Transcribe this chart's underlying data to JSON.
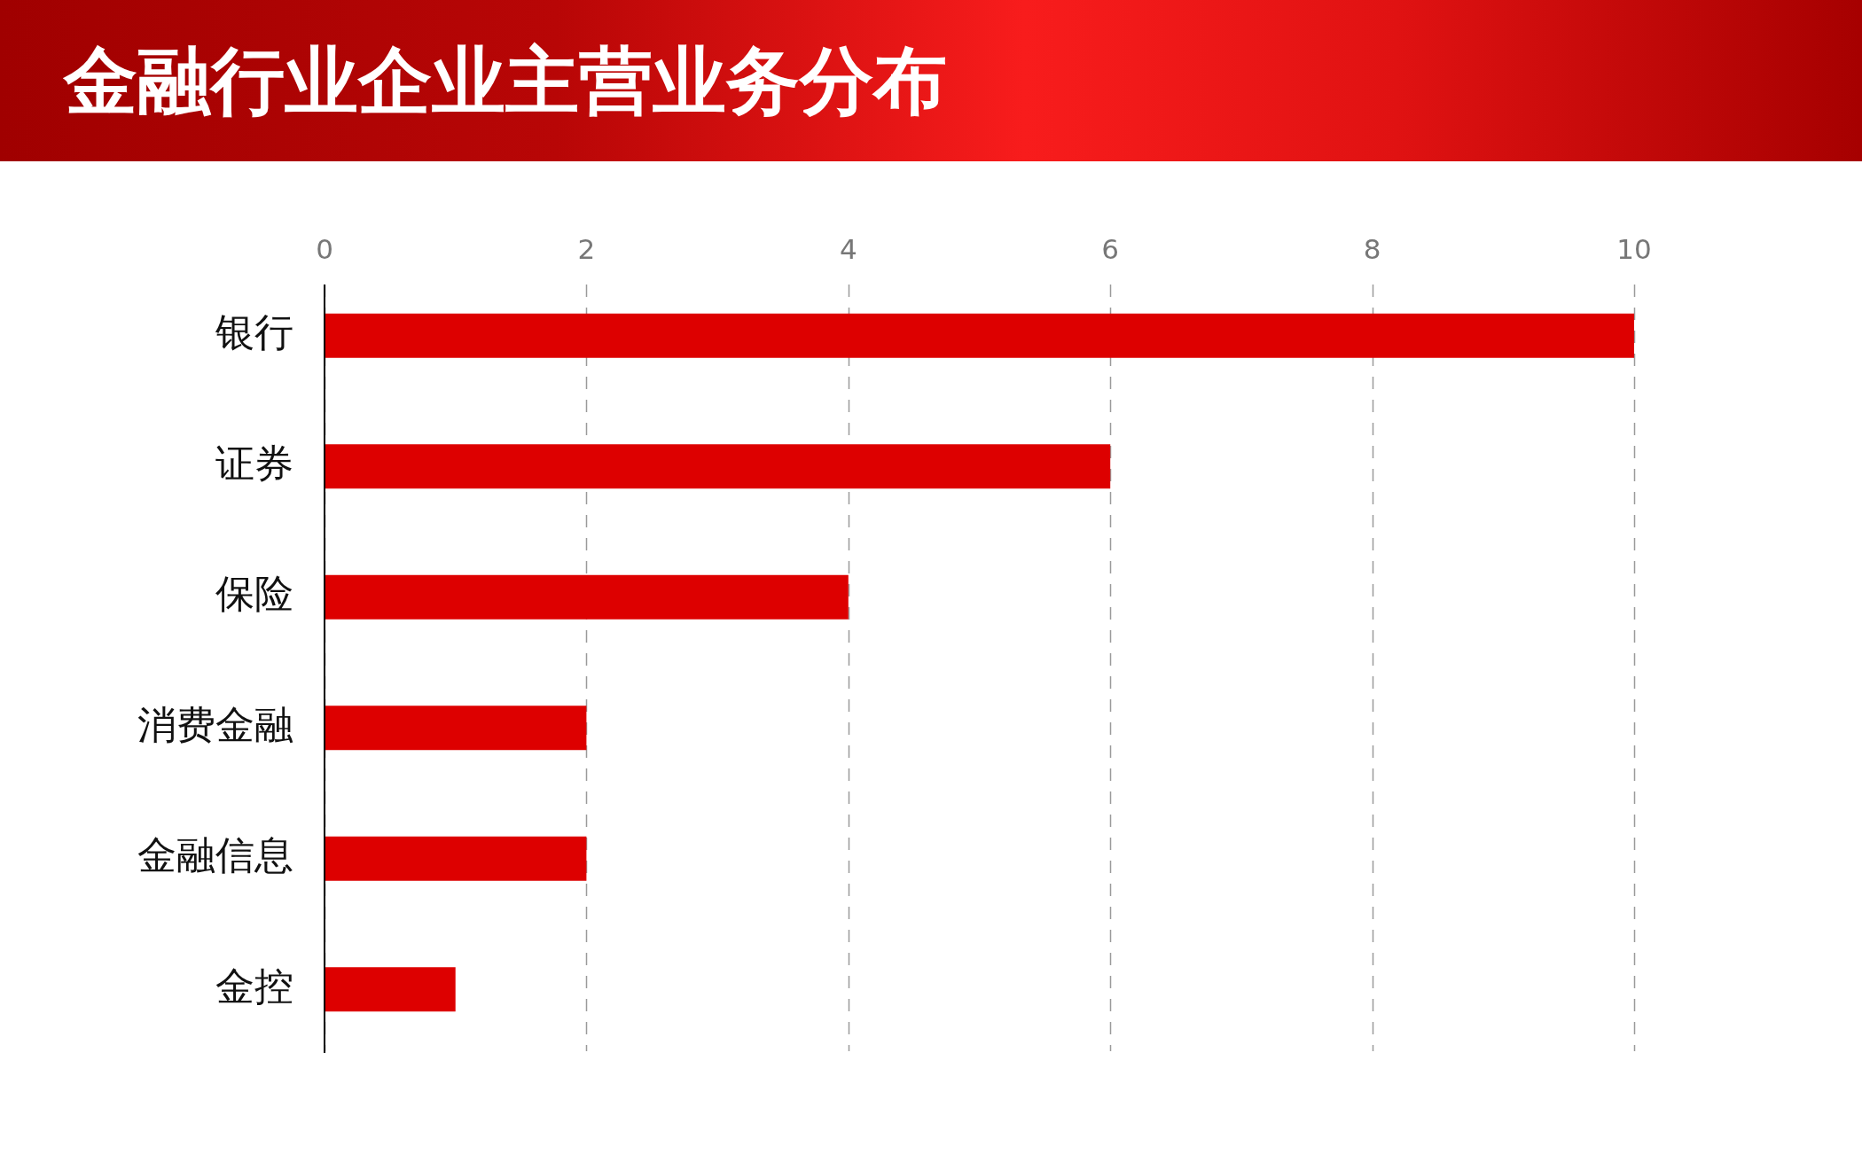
{
  "chart_data": {
    "type": "bar",
    "title": "金融行业企业主营业务分布",
    "orientation": "horizontal",
    "categories": [
      "银行",
      "证券",
      "保险",
      "消费金融",
      "金融信息",
      "金控"
    ],
    "values": [
      10,
      6,
      4,
      2,
      2,
      1
    ],
    "color": "#dd0000",
    "xlim": [
      0,
      10
    ],
    "xticks": [
      0,
      2,
      4,
      6,
      8,
      10
    ],
    "grid": "x"
  }
}
